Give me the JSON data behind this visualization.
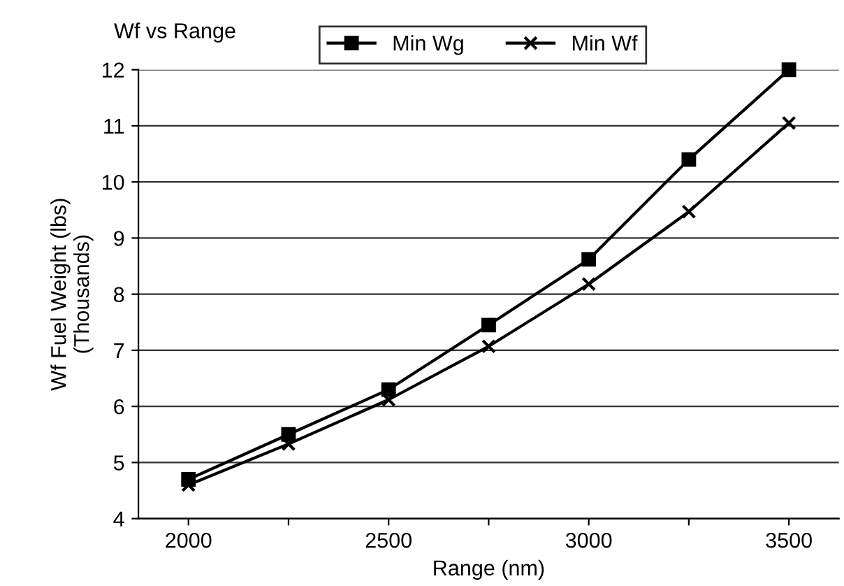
{
  "chart_data": {
    "type": "line",
    "title": "Wf vs Range",
    "xlabel": "Range (nm)",
    "ylabel": "Wf Fuel Weight (lbs)\n(Thousands)",
    "x": [
      2000,
      2250,
      2500,
      2750,
      3000,
      3250,
      3500
    ],
    "xlim": [
      1875,
      3625
    ],
    "xticks": [
      2000,
      {
        "value": 2250,
        "label": null
      },
      2500,
      {
        "value": 2750,
        "label": null
      },
      3000,
      {
        "value": 3250,
        "label": null
      },
      3500
    ],
    "ylim": [
      4,
      12
    ],
    "yticks": [
      4,
      5,
      6,
      7,
      8,
      9,
      10,
      11,
      12
    ],
    "grid": "y",
    "legend": "top right",
    "series": [
      {
        "name": "Min Wg",
        "color": "#000000",
        "marker": "square",
        "values": [
          4.7,
          5.5,
          6.3,
          7.45,
          8.62,
          10.4,
          12
        ]
      },
      {
        "name": "Min Wf",
        "color": "#000000",
        "marker": "cross",
        "values": [
          4.6,
          5.33,
          6.12,
          7.07,
          8.18,
          9.47,
          11.05
        ]
      }
    ]
  }
}
